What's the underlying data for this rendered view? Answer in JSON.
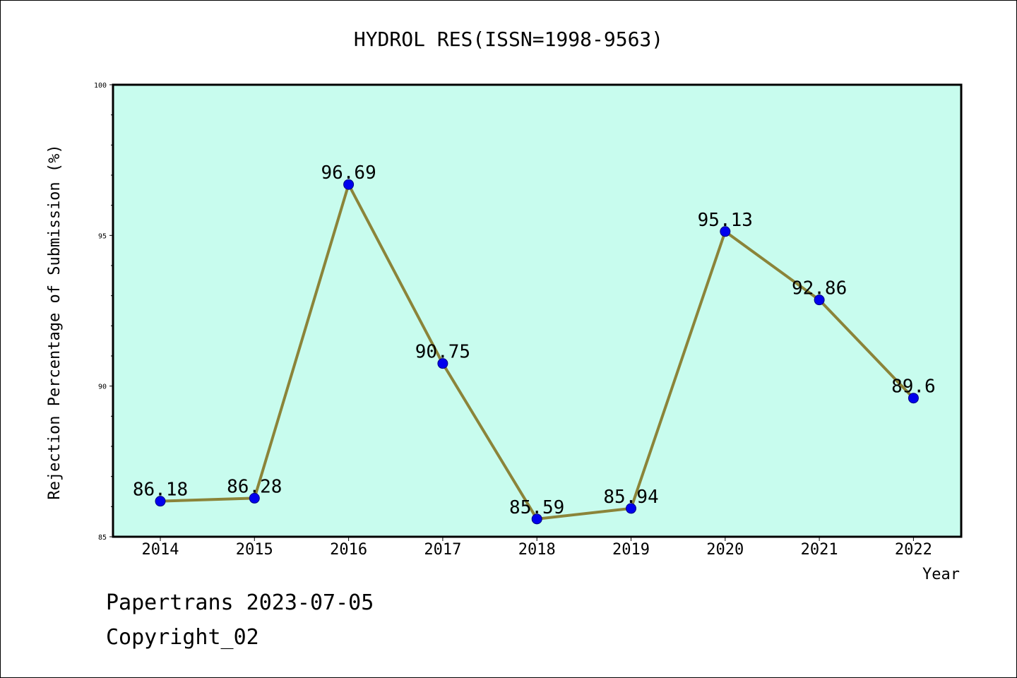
{
  "chart_data": {
    "type": "line",
    "title": "HYDROL RES(ISSN=1998-9563)",
    "xlabel": "Year",
    "ylabel": "Rejection Percentage of Submission (%)",
    "categories": [
      "2014",
      "2015",
      "2016",
      "2017",
      "2018",
      "2019",
      "2020",
      "2021",
      "2022"
    ],
    "series": [
      {
        "values": [
          86.18,
          86.28,
          96.69,
          90.75,
          85.59,
          85.94,
          95.13,
          92.86,
          89.6
        ],
        "labels": [
          "86.18",
          "86.28",
          "96.69",
          "90.75",
          "85.59",
          "85.94",
          "95.13",
          "92.86",
          "89.6"
        ],
        "line_color": "#8b8439",
        "marker_color": "#0000ee"
      }
    ],
    "ylim": [
      85,
      100
    ],
    "yticks": [
      "85",
      "90",
      "95",
      "100"
    ],
    "plot_background": "#c8fcee",
    "grid": false,
    "legend": "none"
  },
  "footer": {
    "line1": "Papertrans 2023-07-05",
    "line2": "Copyright_02"
  }
}
